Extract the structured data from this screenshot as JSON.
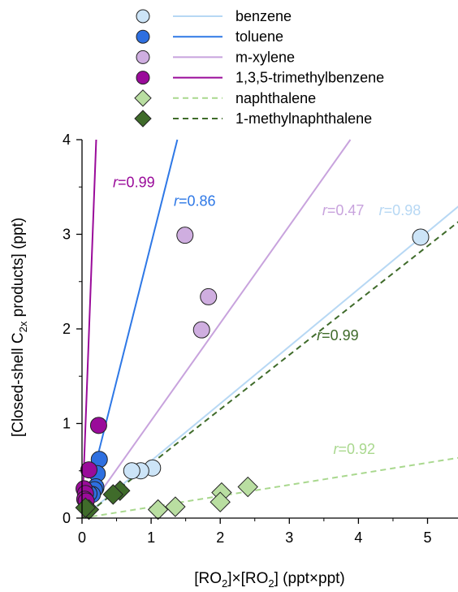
{
  "chart_data": {
    "type": "scatter",
    "xlabel": {
      "pre": "[RO",
      "sub1": "2",
      "mid": "]×[RO",
      "sub2": "2",
      "post": "] (ppt×ppt)"
    },
    "ylabel": {
      "pre": "[Closed-shell C",
      "sub": "2x",
      "post": " products] (ppt)"
    },
    "xlim": [
      0,
      5.45
    ],
    "ylim": [
      0,
      4
    ],
    "xticks": [
      0,
      1,
      2,
      3,
      4,
      5
    ],
    "yticks": [
      0,
      1,
      2,
      3,
      4
    ],
    "xtick_labels": [
      "0",
      "1",
      "2",
      "3",
      "4",
      "5"
    ],
    "ytick_labels": [
      "0",
      "1",
      "2",
      "3",
      "4"
    ],
    "series": [
      {
        "name": "benzene",
        "marker": "circle",
        "color": "#cce4f7",
        "line_color": "#b7d8f4",
        "dashed": false,
        "slope": 0.605,
        "r_label": "=0.98",
        "points": [
          [
            4.9,
            2.97
          ],
          [
            1.02,
            0.53
          ],
          [
            0.85,
            0.5
          ],
          [
            0.72,
            0.5
          ],
          [
            0.2,
            0.32
          ]
        ]
      },
      {
        "name": "toluene",
        "marker": "circle",
        "color": "#2e6fe0",
        "line_color": "#2e78e6",
        "dashed": false,
        "slope": 2.9,
        "r_label": "=0.86",
        "points": [
          [
            0.25,
            0.62
          ],
          [
            0.22,
            0.47
          ],
          [
            0.2,
            0.33
          ],
          [
            0.18,
            0.3
          ],
          [
            0.15,
            0.25
          ],
          [
            0.1,
            0.26
          ]
        ]
      },
      {
        "name": "m-xylene",
        "marker": "circle",
        "color": "#cfaee0",
        "line_color": "#c8a3dd",
        "dashed": false,
        "slope": 1.03,
        "r_label": "=0.47",
        "points": [
          [
            1.49,
            2.99
          ],
          [
            1.83,
            2.34
          ],
          [
            1.73,
            1.99
          ]
        ]
      },
      {
        "name": "1,3,5-trimethylbenzene",
        "marker": "circle",
        "color": "#9a0b9a",
        "line_color": "#9a0b9a",
        "dashed": false,
        "slope": 19.5,
        "r_label": "=0.99",
        "points": [
          [
            0.24,
            0.98
          ],
          [
            0.1,
            0.51
          ],
          [
            0.03,
            0.31
          ],
          [
            0.05,
            0.26
          ],
          [
            0.04,
            0.2
          ],
          [
            0.06,
            0.18
          ]
        ]
      },
      {
        "name": "naphthalene",
        "marker": "diamond",
        "color": "#b9dea1",
        "line_color": "#a9d88e",
        "dashed": true,
        "slope": 0.117,
        "r_label": "=0.92",
        "points": [
          [
            2.4,
            0.33
          ],
          [
            2.02,
            0.27
          ],
          [
            2.0,
            0.17
          ],
          [
            1.35,
            0.12
          ],
          [
            1.1,
            0.09
          ]
        ]
      },
      {
        "name": "1-methylnaphthalene",
        "marker": "diamond",
        "color": "#3f6b2a",
        "line_color": "#3f6b2a",
        "dashed": true,
        "slope": 0.575,
        "r_label": "=0.99",
        "points": [
          [
            0.55,
            0.29
          ],
          [
            0.45,
            0.25
          ],
          [
            0.1,
            0.09
          ],
          [
            0.05,
            0.11
          ]
        ]
      }
    ],
    "annotations": [
      {
        "series": "1,3,5-trimethylbenzene",
        "italic": "r",
        "text": "=0.99",
        "x": 0.75,
        "y": 3.5
      },
      {
        "series": "toluene",
        "italic": "r",
        "text": "=0.86",
        "x": 1.63,
        "y": 3.3
      },
      {
        "series": "m-xylene",
        "italic": "r",
        "text": "=0.47",
        "x": 3.78,
        "y": 3.2
      },
      {
        "series": "benzene",
        "italic": "r",
        "text": "=0.98",
        "x": 4.6,
        "y": 3.2
      },
      {
        "series": "1-methylnaphthalene",
        "italic": "r",
        "text": "=0.99",
        "x": 3.7,
        "y": 1.88
      },
      {
        "series": "naphthalene",
        "italic": "r",
        "text": "=0.92",
        "x": 3.94,
        "y": 0.68
      }
    ],
    "legend": {
      "placement": "top"
    }
  }
}
